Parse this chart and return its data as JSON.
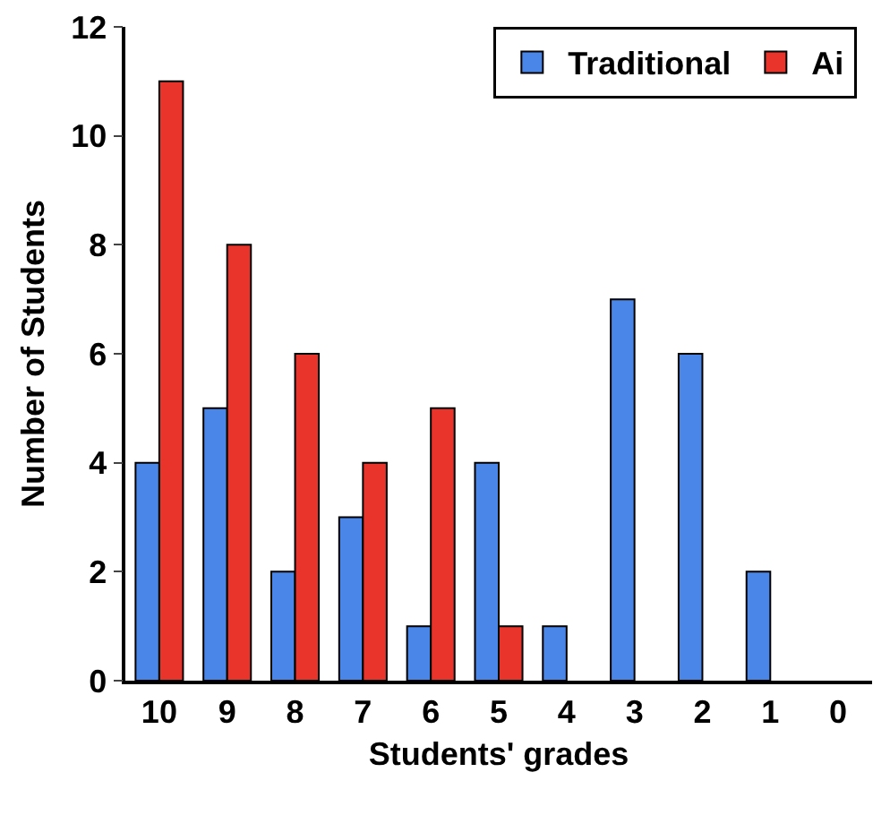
{
  "chart_data": {
    "type": "bar",
    "xlabel": "Students' grades",
    "ylabel": "Number of Students",
    "categories": [
      "10",
      "9",
      "8",
      "7",
      "6",
      "5",
      "4",
      "3",
      "2",
      "1",
      "0"
    ],
    "series": [
      {
        "name": "Traditional",
        "color": "#4a86e8",
        "values": [
          4,
          5,
          2,
          3,
          1,
          4,
          1,
          7,
          6,
          2,
          0
        ]
      },
      {
        "name": "Ai",
        "color": "#e8342a",
        "values": [
          11,
          8,
          6,
          4,
          5,
          1,
          0,
          0,
          0,
          0,
          0
        ]
      }
    ],
    "ylim": [
      0,
      12
    ],
    "yticks": [
      0,
      2,
      4,
      6,
      8,
      10,
      12
    ],
    "grid": false,
    "legend": "top right"
  }
}
